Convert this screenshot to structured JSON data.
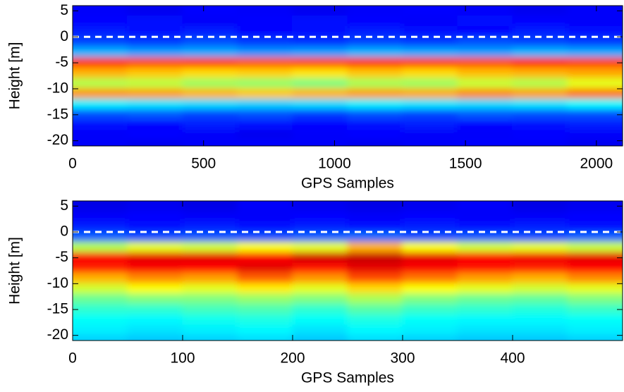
{
  "chart_data": [
    {
      "type": "heatmap",
      "colormap": "jet",
      "reference_line": 0,
      "x_label": "GPS Samples",
      "y_label": "Height [m]",
      "xlim": [
        0,
        2100
      ],
      "ylim": [
        6,
        -21
      ],
      "xticks": [
        0,
        500,
        1000,
        1500,
        2000
      ],
      "yticks": [
        5,
        0,
        -5,
        -10,
        -15,
        -20
      ],
      "x": [
        105,
        315,
        525,
        735,
        945,
        1155,
        1365,
        1575,
        1785,
        1995
      ],
      "y": [
        5,
        3,
        1,
        -1,
        -3,
        -5,
        -7,
        -9,
        -11,
        -13,
        -15,
        -17,
        -19,
        -21
      ],
      "values": [
        [
          0.12,
          0.11,
          0.13,
          0.12,
          0.11,
          0.12,
          0.13,
          0.12,
          0.11,
          0.12
        ],
        [
          0.13,
          0.14,
          0.12,
          0.13,
          0.14,
          0.13,
          0.12,
          0.14,
          0.13,
          0.12
        ],
        [
          0.15,
          0.14,
          0.15,
          0.13,
          0.14,
          0.15,
          0.14,
          0.13,
          0.15,
          0.14
        ],
        [
          0.19,
          0.18,
          0.2,
          0.18,
          0.17,
          0.19,
          0.18,
          0.2,
          0.19,
          0.18
        ],
        [
          0.3,
          0.28,
          0.29,
          0.27,
          0.28,
          0.3,
          0.29,
          0.28,
          0.3,
          0.29
        ],
        [
          0.82,
          0.8,
          0.81,
          0.79,
          0.8,
          0.82,
          0.81,
          0.8,
          0.83,
          0.81
        ],
        [
          0.7,
          0.68,
          0.66,
          0.67,
          0.65,
          0.68,
          0.66,
          0.69,
          0.7,
          0.71
        ],
        [
          0.55,
          0.56,
          0.53,
          0.52,
          0.5,
          0.54,
          0.53,
          0.57,
          0.55,
          0.6
        ],
        [
          0.73,
          0.72,
          0.7,
          0.68,
          0.7,
          0.72,
          0.71,
          0.74,
          0.72,
          0.76
        ],
        [
          0.36,
          0.35,
          0.34,
          0.33,
          0.34,
          0.36,
          0.35,
          0.34,
          0.35,
          0.37
        ],
        [
          0.2,
          0.21,
          0.19,
          0.2,
          0.18,
          0.2,
          0.19,
          0.21,
          0.2,
          0.2
        ],
        [
          0.14,
          0.13,
          0.15,
          0.14,
          0.13,
          0.14,
          0.15,
          0.13,
          0.14,
          0.15
        ],
        [
          0.12,
          0.13,
          0.12,
          0.11,
          0.12,
          0.13,
          0.12,
          0.12,
          0.13,
          0.12
        ],
        [
          0.12,
          0.11,
          0.12,
          0.13,
          0.12,
          0.11,
          0.12,
          0.13,
          0.12,
          0.11
        ]
      ]
    },
    {
      "type": "heatmap",
      "colormap": "jet",
      "reference_line": 0,
      "x_label": "GPS Samples",
      "y_label": "Height [m]",
      "xlim": [
        0,
        500
      ],
      "ylim": [
        6,
        -21
      ],
      "xticks": [
        0,
        100,
        200,
        300,
        400
      ],
      "yticks": [
        5,
        0,
        -5,
        -10,
        -15,
        -20
      ],
      "x": [
        25,
        75,
        125,
        175,
        225,
        275,
        325,
        375,
        425,
        475
      ],
      "y": [
        5,
        3,
        1,
        -1,
        -3,
        -5,
        -7,
        -9,
        -11,
        -13,
        -15,
        -17,
        -19,
        -21
      ],
      "values": [
        [
          0.1,
          0.11,
          0.1,
          0.12,
          0.11,
          0.1,
          0.11,
          0.12,
          0.1,
          0.11
        ],
        [
          0.12,
          0.13,
          0.12,
          0.12,
          0.13,
          0.12,
          0.13,
          0.12,
          0.12,
          0.13
        ],
        [
          0.15,
          0.14,
          0.15,
          0.14,
          0.15,
          0.14,
          0.15,
          0.14,
          0.15,
          0.14
        ],
        [
          0.22,
          0.2,
          0.21,
          0.2,
          0.22,
          0.23,
          0.2,
          0.21,
          0.2,
          0.22
        ],
        [
          0.55,
          0.6,
          0.58,
          0.62,
          0.6,
          0.7,
          0.62,
          0.58,
          0.6,
          0.57
        ],
        [
          0.88,
          0.9,
          0.9,
          0.88,
          0.92,
          0.93,
          0.9,
          0.88,
          0.89,
          0.9
        ],
        [
          0.85,
          0.88,
          0.87,
          0.9,
          0.86,
          0.9,
          0.88,
          0.86,
          0.85,
          0.87
        ],
        [
          0.7,
          0.74,
          0.72,
          0.78,
          0.73,
          0.8,
          0.76,
          0.72,
          0.7,
          0.74
        ],
        [
          0.58,
          0.62,
          0.6,
          0.64,
          0.6,
          0.66,
          0.62,
          0.6,
          0.58,
          0.6
        ],
        [
          0.48,
          0.5,
          0.5,
          0.52,
          0.5,
          0.54,
          0.5,
          0.48,
          0.47,
          0.5
        ],
        [
          0.42,
          0.42,
          0.44,
          0.45,
          0.42,
          0.46,
          0.43,
          0.42,
          0.41,
          0.43
        ],
        [
          0.38,
          0.37,
          0.39,
          0.4,
          0.38,
          0.4,
          0.38,
          0.37,
          0.37,
          0.38
        ],
        [
          0.36,
          0.35,
          0.36,
          0.37,
          0.35,
          0.37,
          0.36,
          0.35,
          0.35,
          0.36
        ],
        [
          0.33,
          0.32,
          0.33,
          0.34,
          0.32,
          0.34,
          0.33,
          0.32,
          0.32,
          0.33
        ]
      ]
    }
  ]
}
